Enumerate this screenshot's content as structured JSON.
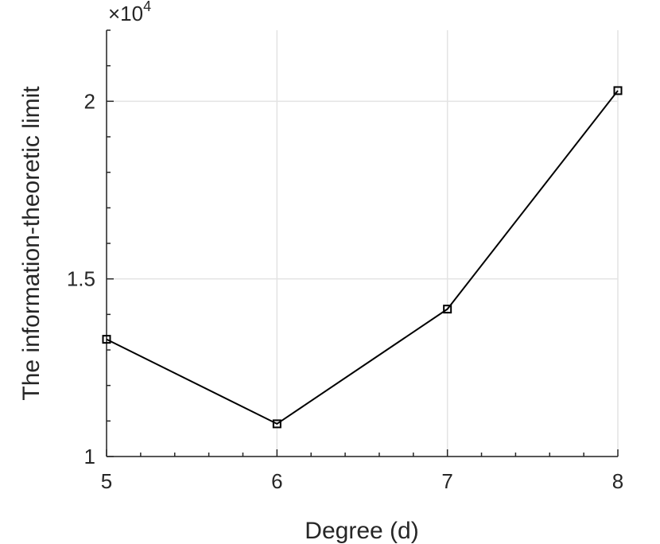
{
  "chart_data": {
    "type": "line",
    "title": "",
    "xlabel": "Degree (d)",
    "ylabel": "The information-theoretic limit",
    "y_exponent_label": "×10",
    "y_exponent_power": "4",
    "xlim": [
      5,
      8
    ],
    "ylim": [
      1,
      2.2
    ],
    "y_scale_factor": 10000,
    "x_ticks": [
      5,
      6,
      7,
      8
    ],
    "x_tick_labels": [
      "5",
      "6",
      "7",
      "8"
    ],
    "y_ticks": [
      1,
      1.5,
      2
    ],
    "y_tick_labels": [
      "1",
      "1.5",
      "2"
    ],
    "grid": true,
    "series": [
      {
        "marker": "square",
        "color": "#000000",
        "x": [
          5,
          6,
          7,
          8
        ],
        "y": [
          1.33,
          1.092,
          1.415,
          2.03
        ]
      }
    ]
  }
}
